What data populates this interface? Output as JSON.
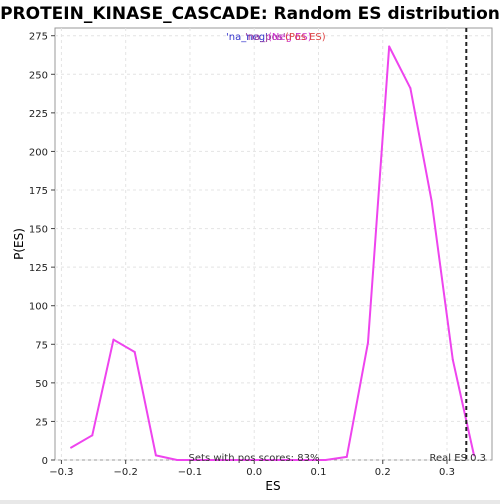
{
  "chart_data": {
    "type": "line",
    "title": "PROTEIN_KINASE_CASCADE: Random ES distribution",
    "xlabel": "ES",
    "ylabel": "P(ES)",
    "xlim": [
      -0.31,
      0.37
    ],
    "ylim": [
      0,
      280
    ],
    "xticks": [
      "−0.3",
      "−0.2",
      "−0.1",
      "0.0",
      "0.1",
      "0.2",
      "0.3"
    ],
    "xtick_values": [
      -0.3,
      -0.2,
      -0.1,
      0.0,
      0.1,
      0.2,
      0.3
    ],
    "yticks": [
      "0",
      "25",
      "50",
      "75",
      "100",
      "125",
      "150",
      "175",
      "200",
      "225",
      "250",
      "275"
    ],
    "ytick_values": [
      0,
      25,
      50,
      75,
      100,
      125,
      150,
      175,
      200,
      225,
      250,
      275
    ],
    "grid": true,
    "series": [
      {
        "color": "#ee44ee",
        "x": [
          -0.285,
          -0.252,
          -0.219,
          -0.186,
          -0.153,
          -0.12,
          -0.087,
          -0.054,
          -0.021,
          0.012,
          0.045,
          0.078,
          0.111,
          0.144,
          0.177,
          0.21,
          0.243,
          0.276,
          0.309,
          0.342
        ],
        "y": [
          8,
          16,
          78,
          70,
          3,
          0,
          0,
          0,
          0,
          0,
          0,
          0,
          0,
          2,
          76,
          268,
          241,
          168,
          65,
          3
        ]
      }
    ],
    "real_es": {
      "value": 0.33,
      "color": "#222222",
      "style": "dashed"
    },
    "legend": {
      "placement": "top-center",
      "text_a": "'na_neg'",
      "text_b": "'na_pos'",
      "text_c": "(Neg ES)",
      "text_d": "(Pos ES)"
    },
    "annotations": {
      "sets_pos": "Sets with pos scores: 83%",
      "real_es": "Real ES 0.3"
    }
  }
}
